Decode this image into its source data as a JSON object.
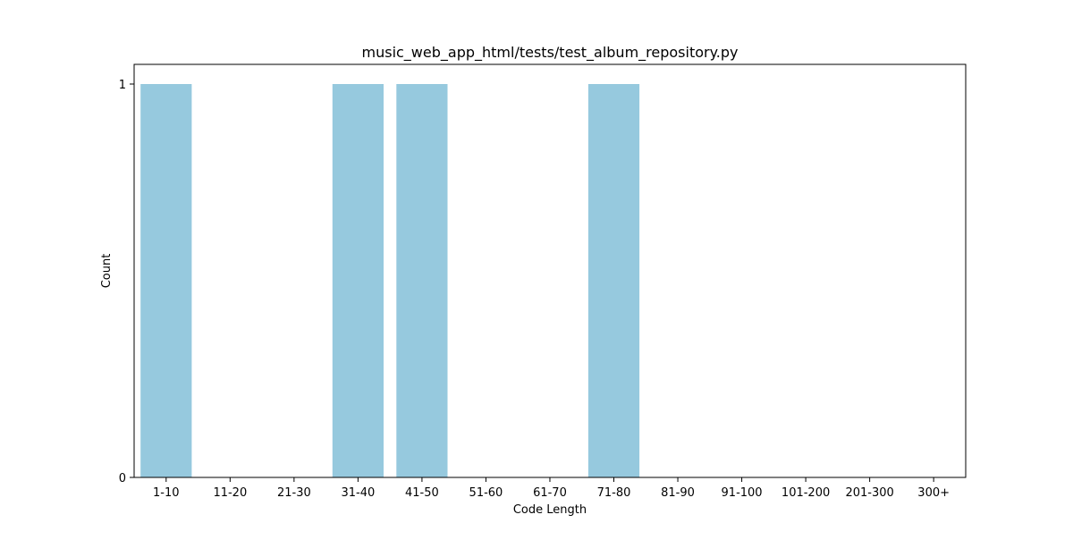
{
  "chart_data": {
    "type": "bar",
    "title": "music_web_app_html/tests/test_album_repository.py",
    "xlabel": "Code Length",
    "ylabel": "Count",
    "categories": [
      "1-10",
      "11-20",
      "21-30",
      "31-40",
      "41-50",
      "51-60",
      "61-70",
      "71-80",
      "81-90",
      "91-100",
      "101-200",
      "201-300",
      "300+"
    ],
    "values": [
      1,
      0,
      0,
      1,
      1,
      0,
      0,
      1,
      0,
      0,
      0,
      0,
      0
    ],
    "ylim": [
      0,
      1
    ],
    "yticks": [
      0,
      1
    ],
    "bar_color": "#96c9de",
    "grid": false,
    "legend": "none"
  }
}
